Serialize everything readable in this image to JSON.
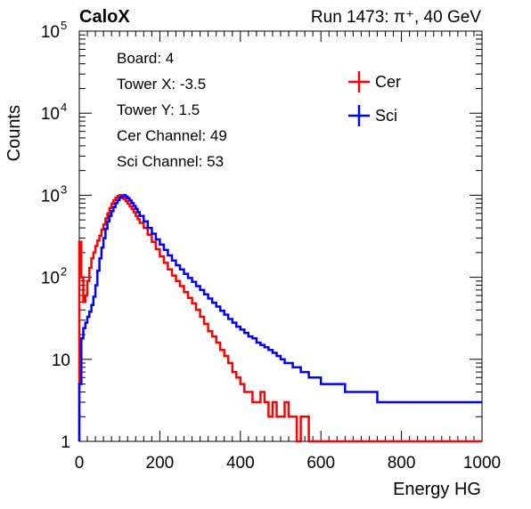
{
  "header": {
    "left_label": "CaloX",
    "right_label": "Run 1473:   π⁺, 40 GeV"
  },
  "info_box": {
    "lines": [
      "Board: 4",
      "Tower X: -3.5",
      "Tower Y: 1.5",
      "Cer Channel: 49",
      "Sci Channel: 53"
    ]
  },
  "chart_data": {
    "type": "line",
    "style": "step-histogram",
    "xlabel": "Energy HG",
    "ylabel": "Counts",
    "xlim": [
      0,
      1000
    ],
    "ylim": [
      1,
      100000
    ],
    "y_scale": "log",
    "x_ticks": [
      0,
      200,
      400,
      600,
      800,
      1000
    ],
    "y_ticks": [
      {
        "value": 1,
        "label": "1"
      },
      {
        "value": 10,
        "label": "10"
      },
      {
        "value": 100,
        "label": "10",
        "sup": "2"
      },
      {
        "value": 1000,
        "label": "10",
        "sup": "3"
      },
      {
        "value": 10000,
        "label": "10",
        "sup": "4"
      },
      {
        "value": 100000,
        "label": "10",
        "sup": "5"
      }
    ],
    "legend_position": "top-right",
    "grid": false,
    "series": [
      {
        "name": "Cer",
        "color": "#ff0000",
        "x": [
          0,
          5,
          10,
          15,
          20,
          25,
          30,
          35,
          40,
          45,
          50,
          55,
          60,
          65,
          70,
          75,
          80,
          85,
          90,
          95,
          100,
          105,
          110,
          115,
          120,
          125,
          130,
          135,
          140,
          145,
          150,
          160,
          170,
          180,
          190,
          200,
          210,
          220,
          230,
          240,
          250,
          260,
          270,
          280,
          290,
          300,
          310,
          320,
          330,
          340,
          350,
          360,
          370,
          380,
          390,
          400,
          410,
          420,
          430,
          440,
          450,
          460,
          470,
          480,
          490,
          500,
          510,
          520,
          530,
          540,
          550,
          560,
          570,
          580,
          590,
          600,
          620,
          640,
          660,
          680,
          700,
          720,
          740,
          760,
          780,
          800,
          820,
          840,
          860,
          880,
          900,
          920,
          940,
          960,
          980,
          995
        ],
        "y": [
          270,
          100,
          50,
          60,
          90,
          130,
          170,
          200,
          240,
          280,
          320,
          380,
          440,
          520,
          600,
          700,
          790,
          870,
          930,
          980,
          1000,
          960,
          900,
          850,
          790,
          730,
          680,
          620,
          560,
          510,
          460,
          400,
          330,
          270,
          220,
          180,
          150,
          125,
          105,
          90,
          78,
          66,
          56,
          48,
          40,
          33,
          27,
          22,
          19,
          16,
          13,
          11,
          9,
          7,
          6,
          5,
          4,
          4,
          3,
          3,
          4,
          3,
          2,
          3,
          2,
          2,
          3,
          2,
          2,
          1,
          2,
          2,
          1,
          1,
          1,
          1,
          1,
          1,
          1,
          1,
          1,
          1,
          1,
          1,
          1,
          1,
          1,
          1,
          1,
          1,
          1,
          1,
          1,
          1,
          1,
          1
        ]
      },
      {
        "name": "Sci",
        "color": "#0000ff",
        "x": [
          0,
          5,
          10,
          15,
          20,
          25,
          30,
          35,
          40,
          45,
          50,
          55,
          60,
          65,
          70,
          75,
          80,
          85,
          90,
          95,
          100,
          105,
          110,
          115,
          120,
          125,
          130,
          135,
          140,
          145,
          150,
          160,
          170,
          180,
          190,
          200,
          210,
          220,
          230,
          240,
          250,
          260,
          270,
          280,
          290,
          300,
          310,
          320,
          330,
          340,
          350,
          360,
          370,
          380,
          390,
          400,
          410,
          420,
          430,
          440,
          450,
          460,
          470,
          480,
          490,
          500,
          510,
          520,
          530,
          540,
          550,
          560,
          570,
          580,
          590,
          600,
          620,
          640,
          660,
          680,
          700,
          720,
          740,
          760,
          780,
          800,
          820,
          840,
          860,
          880,
          900,
          920,
          940,
          960,
          980,
          995
        ],
        "y": [
          5,
          18,
          24,
          28,
          33,
          38,
          46,
          58,
          80,
          120,
          170,
          230,
          300,
          390,
          480,
          560,
          640,
          720,
          800,
          870,
          930,
          970,
          1000,
          960,
          920,
          860,
          800,
          740,
          680,
          620,
          560,
          480,
          400,
          340,
          290,
          250,
          215,
          185,
          160,
          140,
          125,
          110,
          98,
          88,
          78,
          70,
          62,
          55,
          49,
          44,
          39,
          35,
          31,
          28,
          25,
          23,
          21,
          19,
          18,
          16,
          15,
          14,
          13,
          12,
          11,
          10,
          9,
          9,
          8,
          8,
          7,
          7,
          6,
          6,
          6,
          5,
          5,
          5,
          4,
          4,
          4,
          4,
          3,
          3,
          3,
          3,
          3,
          3,
          3,
          3,
          3,
          3,
          3,
          3,
          3,
          3
        ]
      }
    ]
  }
}
